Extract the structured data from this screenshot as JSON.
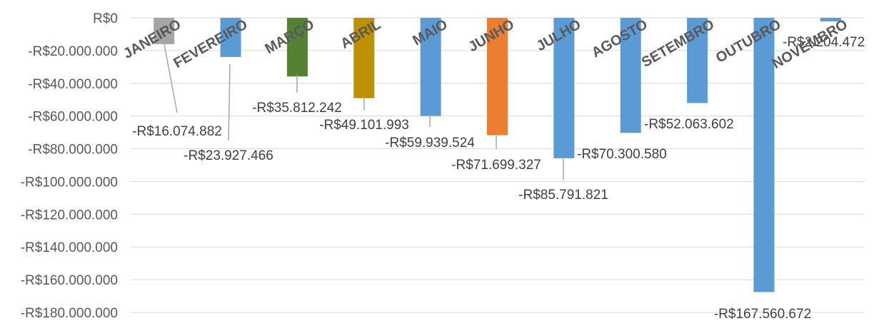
{
  "chart_data": {
    "type": "bar",
    "categories": [
      "JANEIRO",
      "FEVEREIRO",
      "MARÇO",
      "ABRIL",
      "MAIO",
      "JUNHO",
      "JULHO",
      "AGOSTO",
      "SETEMBRO",
      "OUTUBRO",
      "NOVEMBRO"
    ],
    "values": [
      -16074882,
      -23927466,
      -35812242,
      -49101993,
      -59939524,
      -71699327,
      -85791821,
      -70300580,
      -52063602,
      -167560672,
      -2204472
    ],
    "data_labels": [
      "-R$16.074.882",
      "-R$23.927.466",
      "-R$35.812.242",
      "-R$49.101.993",
      "-R$59.939.524",
      "-R$71.699.327",
      "-R$85.791.821",
      "-R$70.300.580",
      "-R$52.063.602",
      "-R$167.560.672",
      "-R$2.204.472"
    ],
    "colors": [
      "#a5a5a5",
      "#5b9bd5",
      "#548235",
      "#bf9000",
      "#5b9bd5",
      "#ed7d31",
      "#5b9bd5",
      "#5b9bd5",
      "#5b9bd5",
      "#5b9bd5",
      "#5b9bd5"
    ],
    "ylim": [
      -180000000,
      0
    ],
    "yticks": [
      0,
      -20000000,
      -40000000,
      -60000000,
      -80000000,
      -100000000,
      -120000000,
      -140000000,
      -160000000,
      -180000000
    ],
    "ytick_labels": [
      "R$0",
      "-R$20.000.000",
      "-R$40.000.000",
      "-R$60.000.000",
      "-R$80.000.000",
      "-R$100.000.000",
      "-R$120.000.000",
      "-R$140.000.000",
      "-R$160.000.000",
      "-R$180.000.000"
    ],
    "grid": true,
    "legend": "none",
    "title": "",
    "xlabel": "",
    "ylabel": ""
  }
}
